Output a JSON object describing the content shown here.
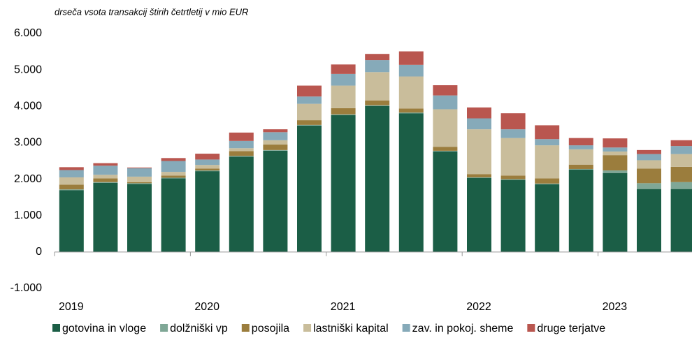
{
  "chart_data": {
    "type": "stacked_bar",
    "subtitle": "drseča vsota transakcij štirih četrtletij v mio EUR",
    "categories": [
      "2019",
      null,
      null,
      null,
      "2020",
      null,
      null,
      null,
      "2021",
      null,
      null,
      null,
      "2022",
      null,
      null,
      null,
      "2023",
      null,
      null
    ],
    "series": [
      {
        "name": "gotovina in vloge",
        "color": "#1b5e46",
        "values": [
          1700,
          1900,
          1870,
          2020,
          2220,
          2620,
          2780,
          3470,
          3760,
          4010,
          3810,
          2760,
          2030,
          1980,
          1860,
          2260,
          2170,
          1730,
          1730
        ]
      },
      {
        "name": "dolžniški vp",
        "color": "#7fa796",
        "values": [
          20,
          20,
          20,
          20,
          20,
          20,
          20,
          20,
          20,
          20,
          20,
          20,
          20,
          20,
          20,
          20,
          70,
          160,
          190
        ]
      },
      {
        "name": "posojila",
        "color": "#9b7d3d",
        "values": [
          130,
          100,
          30,
          60,
          50,
          130,
          150,
          130,
          170,
          130,
          110,
          110,
          90,
          100,
          140,
          120,
          420,
          400,
          420
        ]
      },
      {
        "name": "lastniški kapital",
        "color": "#c9bd9b",
        "values": [
          200,
          100,
          150,
          100,
          100,
          80,
          120,
          450,
          620,
          780,
          880,
          1030,
          1230,
          1030,
          910,
          420,
          100,
          230,
          350
        ]
      },
      {
        "name": "zav. in pokoj. sheme",
        "color": "#86aab9",
        "values": [
          200,
          250,
          230,
          300,
          150,
          200,
          220,
          200,
          320,
          330,
          320,
          380,
          300,
          240,
          170,
          110,
          110,
          170,
          220
        ]
      },
      {
        "name": "druge terjatve",
        "color": "#b9564f",
        "values": [
          80,
          70,
          20,
          80,
          160,
          230,
          80,
          300,
          260,
          170,
          370,
          280,
          300,
          440,
          380,
          200,
          250,
          110,
          160
        ]
      }
    ],
    "ylim": [
      -1000,
      6000
    ],
    "yticks": [
      {
        "value": -1000,
        "label": "-1.000"
      },
      0,
      {
        "value": 1000,
        "label": "1.000"
      },
      {
        "value": 2000,
        "label": "2.000"
      },
      {
        "value": 3000,
        "label": "3.000"
      },
      {
        "value": 4000,
        "label": "4.000"
      },
      {
        "value": 5000,
        "label": "5.000"
      },
      {
        "value": 6000,
        "label": "6.000"
      }
    ],
    "grid": false,
    "legend": "bottom"
  }
}
